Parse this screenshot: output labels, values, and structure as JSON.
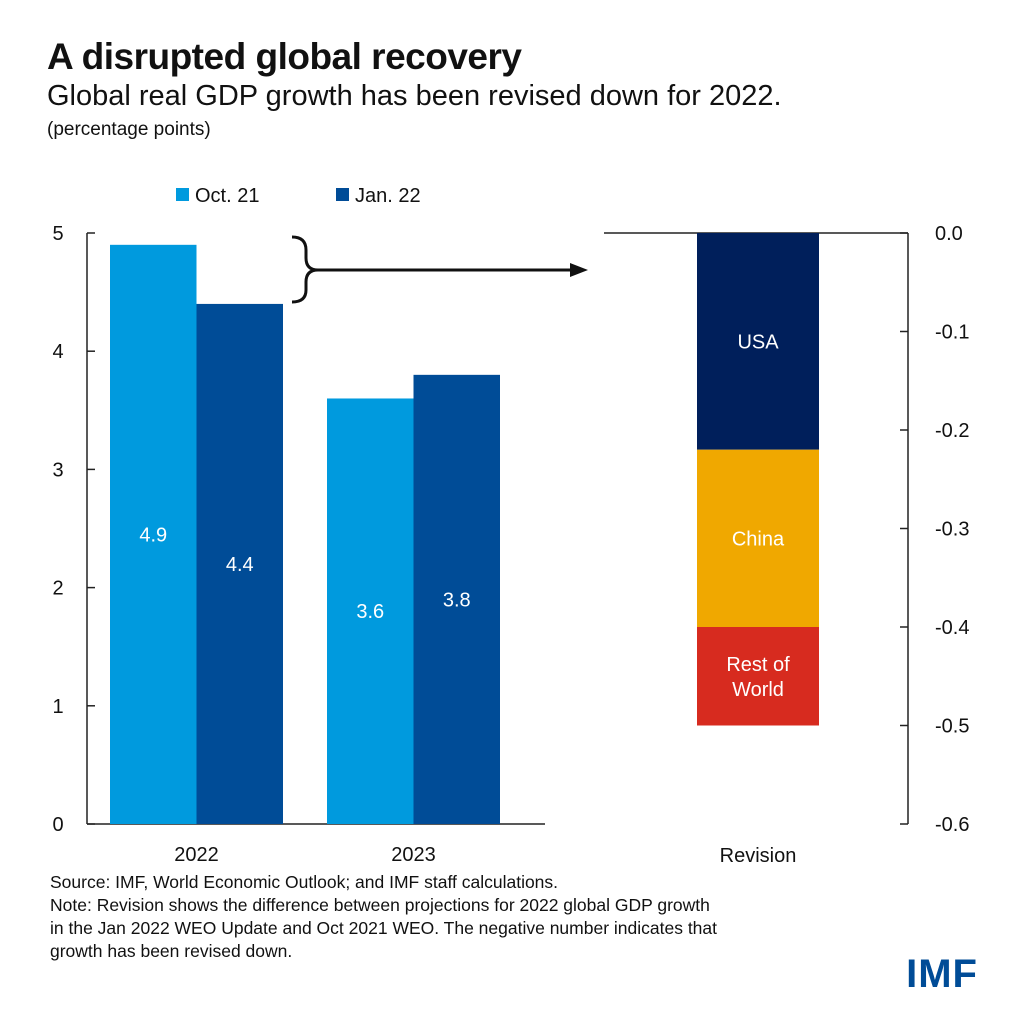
{
  "header": {
    "title": "A disrupted global recovery",
    "subtitle": "Global real GDP growth has been revised down for 2022.",
    "unit": "(percentage points)"
  },
  "chart_data": [
    {
      "type": "bar",
      "categories": [
        "2022",
        "2023"
      ],
      "series": [
        {
          "name": "Oct. 21",
          "values": [
            4.9,
            3.6
          ],
          "color": "#009ADE"
        },
        {
          "name": "Jan. 22",
          "values": [
            4.4,
            3.8
          ],
          "color": "#004C97"
        }
      ],
      "ylim": [
        0,
        5
      ],
      "yticks": [
        "0",
        "1",
        "2",
        "3",
        "4",
        "5"
      ],
      "legend": "top",
      "data_labels": [
        "4.9",
        "3.6",
        "4.4",
        "3.8"
      ]
    },
    {
      "type": "bar",
      "stacked": true,
      "categories": [
        "Revision"
      ],
      "series": [
        {
          "name": "USA",
          "values": [
            -0.22
          ],
          "color": "#001F5B"
        },
        {
          "name": "China",
          "values": [
            -0.18
          ],
          "color": "#F0A800"
        },
        {
          "name": "Rest of World",
          "values": [
            -0.1
          ],
          "color": "#D72B1F"
        }
      ],
      "segment_labels": [
        [
          "USA"
        ],
        [
          "China"
        ],
        [
          "Rest of",
          "World"
        ]
      ],
      "ylim": [
        -0.6,
        0
      ],
      "yticks": [
        "0.0",
        "-0.1",
        "-0.2",
        "-0.3",
        "-0.4",
        "-0.5",
        "-0.6"
      ],
      "y_axis_side": "right"
    }
  ],
  "footer": {
    "source": "Source: IMF, World Economic Outlook; and IMF staff calculations.",
    "note_lines": [
      "Note: Revision shows the difference between projections for 2022 global GDP growth",
      "in the Jan 2022 WEO Update and Oct 2021 WEO. The negative number indicates that",
      "growth has been revised down."
    ],
    "logo": "IMF"
  }
}
